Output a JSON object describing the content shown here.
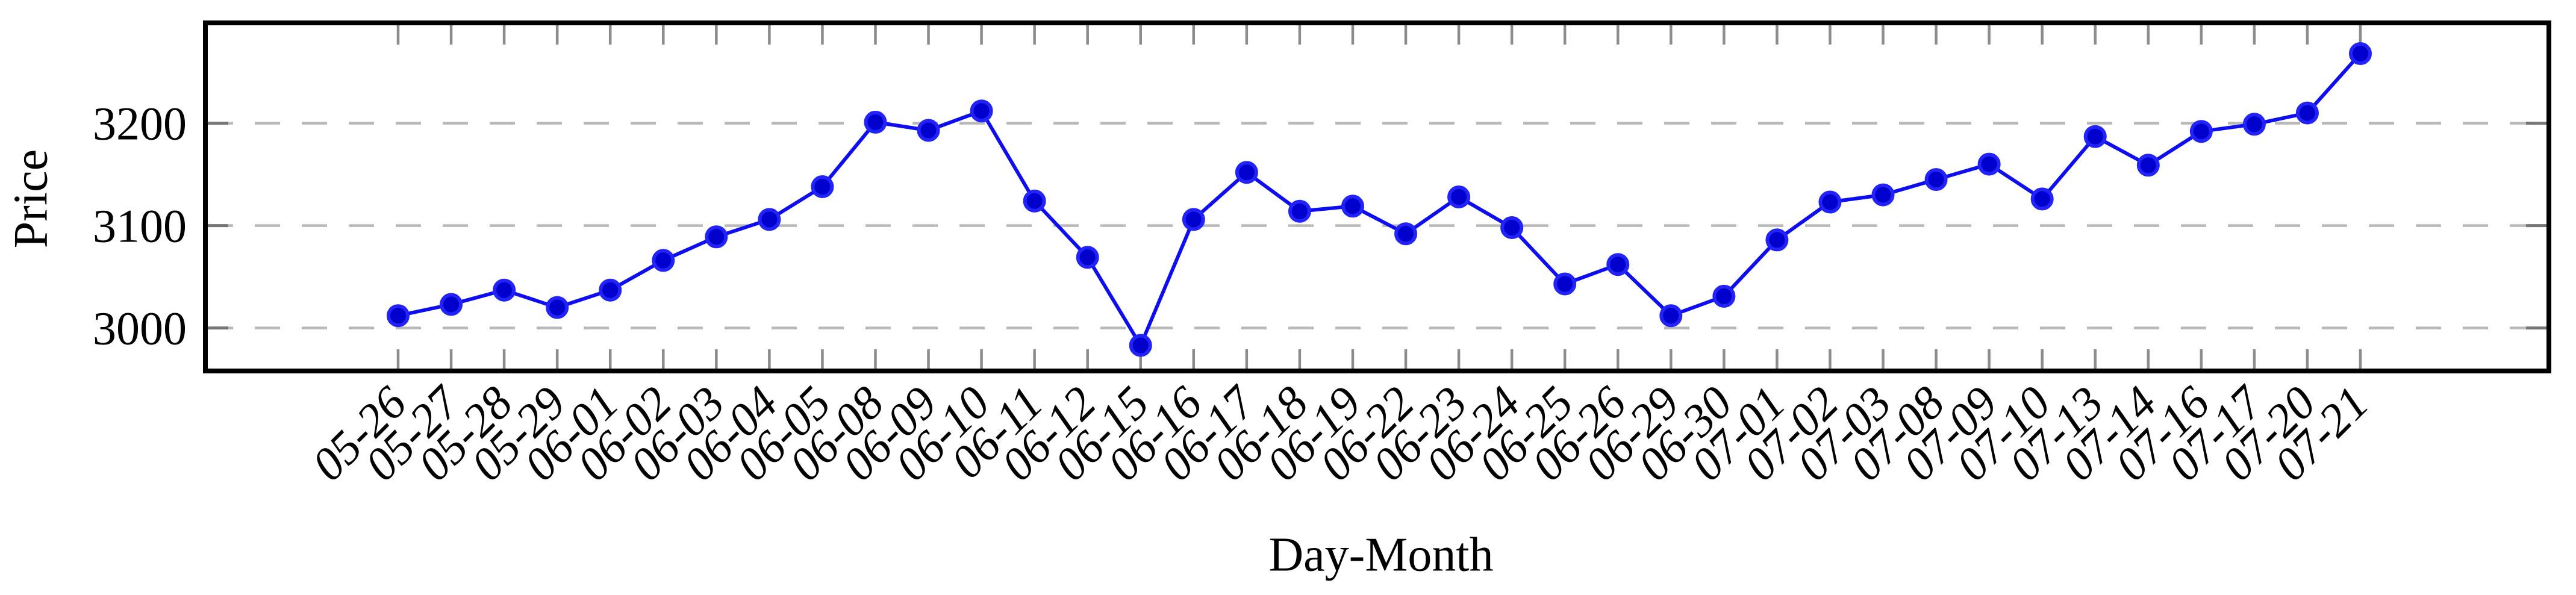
{
  "chart_data": {
    "type": "line",
    "title": "",
    "xlabel": "Day-Month",
    "ylabel": "Price",
    "series": [
      {
        "name": "Price",
        "values": [
          3012,
          3023,
          3037,
          3020,
          3037,
          3066,
          3089,
          3106,
          3138,
          3201,
          3193,
          3212,
          3124,
          3069,
          2983,
          3106,
          3152,
          3114,
          3119,
          3092,
          3128,
          3098,
          3043,
          3062,
          3012,
          3031,
          3086,
          3123,
          3130,
          3145,
          3160,
          3126,
          3187,
          3159,
          3192,
          3199,
          3210,
          3268
        ]
      }
    ],
    "categories": [
      "05-26",
      "05-27",
      "05-28",
      "05-29",
      "06-01",
      "06-02",
      "06-03",
      "06-04",
      "06-05",
      "06-08",
      "06-09",
      "06-10",
      "06-11",
      "06-12",
      "06-15",
      "06-16",
      "06-17",
      "06-18",
      "06-19",
      "06-22",
      "06-23",
      "06-24",
      "06-25",
      "06-26",
      "06-29",
      "06-30",
      "07-01",
      "07-02",
      "07-03",
      "07-08",
      "07-09",
      "07-10",
      "07-13",
      "07-14",
      "07-16",
      "07-17",
      "07-20",
      "07-21"
    ],
    "yticks": [
      3000,
      3100,
      3200
    ],
    "ylim": [
      2958,
      3298
    ],
    "grid": "horizontal-dashed",
    "legend": "none",
    "marker": "circle",
    "colors": {
      "line": "#0d0df0",
      "marker_fill": "#0101cd",
      "marker_edge": "#2222fa",
      "grid": "#b9b9b9",
      "tick": "#8c8c8c",
      "frame": "#000000",
      "text": "#000000",
      "background": "#ffffff"
    }
  }
}
